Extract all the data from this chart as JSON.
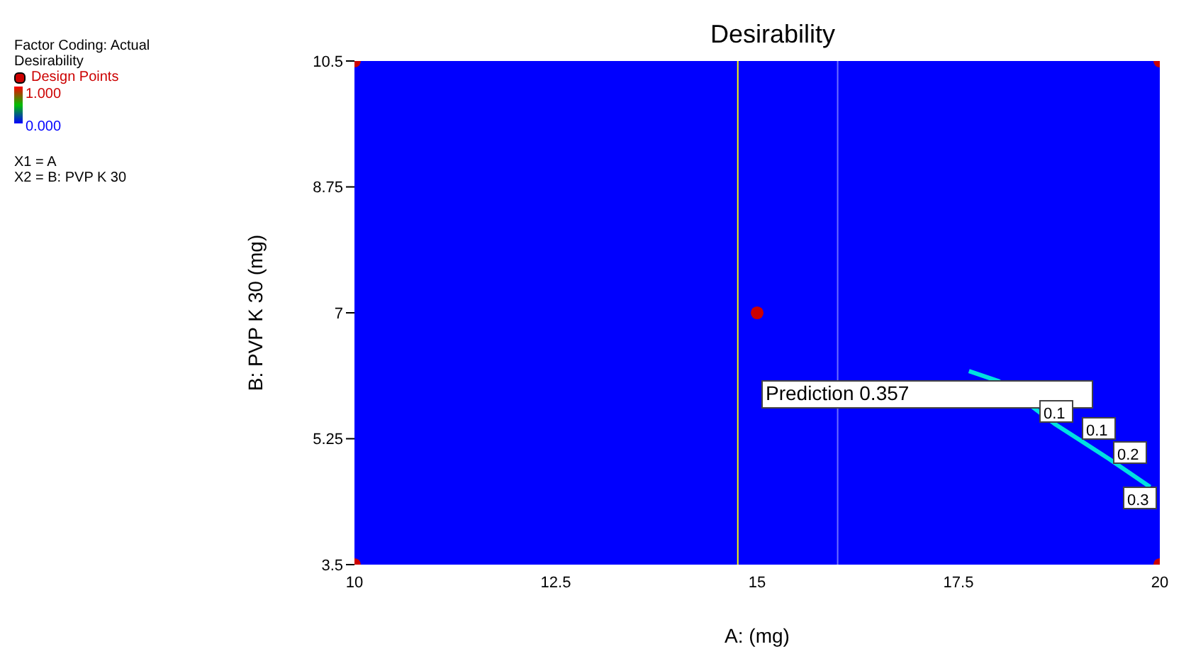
{
  "chart_data": {
    "type": "scatter",
    "title": "Desirability",
    "xlabel": "A: (mg)",
    "ylabel": "B: PVP K 30 (mg)",
    "xlim": [
      10,
      20
    ],
    "ylim": [
      3.5,
      10.5
    ],
    "xticks": [
      10,
      12.5,
      15,
      17.5,
      20
    ],
    "yticks": [
      3.5,
      5.25,
      7,
      8.75,
      10.5
    ],
    "grid": false,
    "series": [
      {
        "name": "Design Points",
        "marker": "circle",
        "color": "#cc0000",
        "x": [
          10,
          10,
          20,
          20,
          15
        ],
        "values": [
          3.5,
          10.5,
          3.5,
          10.5,
          7
        ]
      },
      {
        "type": "line",
        "marker": "none",
        "color": "#00e0e0",
        "x": [
          17.63,
          18.0,
          18.69,
          19.37,
          19.88
        ],
        "values": [
          6.19,
          6.05,
          5.46,
          4.97,
          4.58
        ]
      }
    ],
    "bands": [
      {
        "axis": "x",
        "from": 10,
        "to": 20,
        "color": "#0000ff"
      }
    ],
    "ref_lines": [
      {
        "axis": "x",
        "value": 14.76,
        "color": "#ffff00"
      },
      {
        "axis": "x",
        "value": 16.0,
        "color": "#6f6fff"
      }
    ],
    "annotations": [
      "Factor Coding: Actual",
      "Desirability",
      "1.000",
      "0.000",
      "X1 = A",
      "X2 = B: PVP K 30",
      "Prediction 0.357",
      "0.1",
      "0.1",
      "0.2",
      "0.3"
    ]
  }
}
